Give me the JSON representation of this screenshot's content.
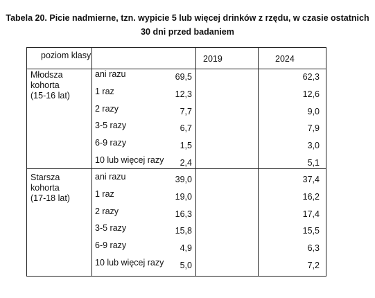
{
  "title": {
    "line1": "Tabela 20. Picie nadmierne, tzn. wypicie 5 lub więcej drinków z rzędu, w czasie ostatnich",
    "line2": "30 dni przed badaniem"
  },
  "table": {
    "header": {
      "group_col": "poziom klasy",
      "freq_col": "",
      "year1": "2019",
      "year2": "2024"
    },
    "groups": [
      {
        "label_lines": [
          "Młodsza",
          "kohorta",
          "(15-16 lat)"
        ],
        "rows": [
          {
            "freq": "ani razu",
            "y2019": "69,5",
            "y2024": "62,3"
          },
          {
            "freq": "1 raz",
            "y2019": "12,3",
            "y2024": "12,6"
          },
          {
            "freq": "2 razy",
            "y2019": "7,7",
            "y2024": "9,0"
          },
          {
            "freq": "3-5 razy",
            "y2019": "6,7",
            "y2024": "7,9"
          },
          {
            "freq": "6-9 razy",
            "y2019": "1,5",
            "y2024": "3,0"
          },
          {
            "freq": "10 lub więcej razy",
            "y2019": "2,4",
            "y2024": "5,1"
          }
        ]
      },
      {
        "label_lines": [
          "Starsza",
          "kohorta",
          "(17-18 lat)"
        ],
        "rows": [
          {
            "freq": "ani razu",
            "y2019": "39,0",
            "y2024": "37,4"
          },
          {
            "freq": "1 raz",
            "y2019": "19,0",
            "y2024": "16,2"
          },
          {
            "freq": "2 razy",
            "y2019": "16,3",
            "y2024": "17,4"
          },
          {
            "freq": "3-5 razy",
            "y2019": "15,8",
            "y2024": "15,5"
          },
          {
            "freq": "6-9 razy",
            "y2019": "4,9",
            "y2024": "6,3"
          },
          {
            "freq": "10 lub więcej razy",
            "y2019": "5,0",
            "y2024": "7,2"
          }
        ]
      }
    ]
  }
}
